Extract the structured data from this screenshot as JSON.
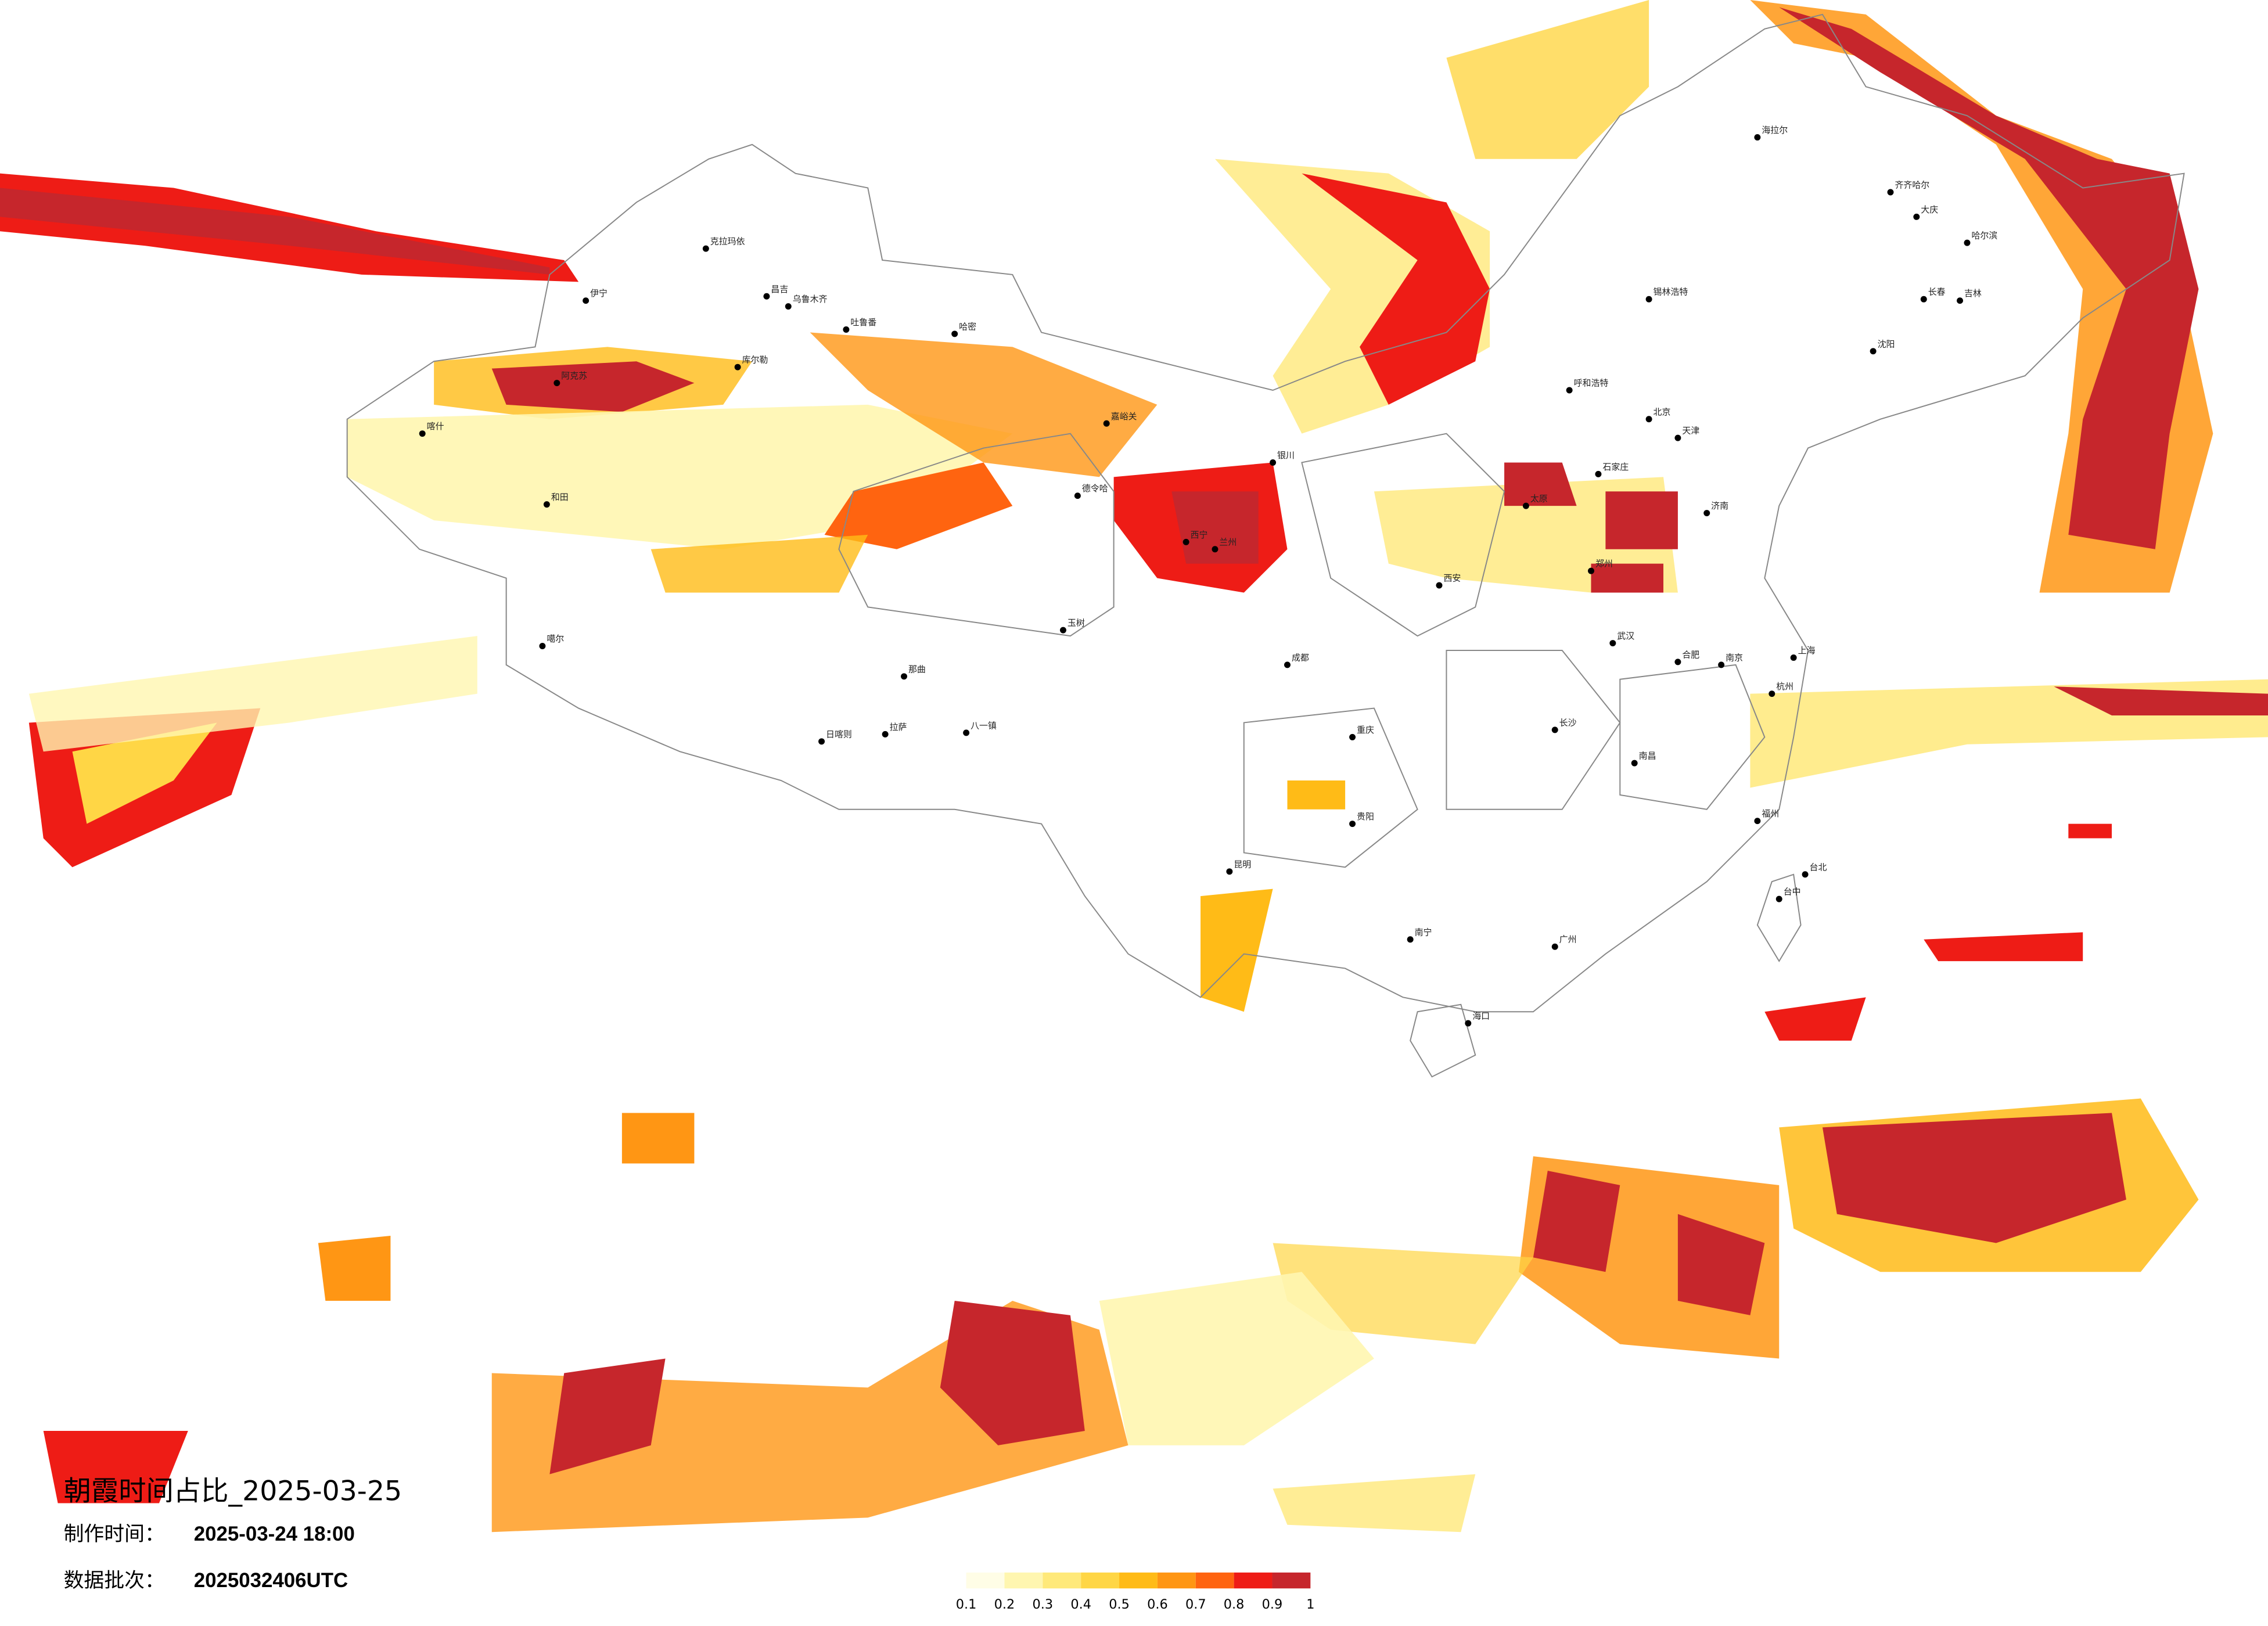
{
  "title": "朝霞时间占比_2025-03-25",
  "production_time": {
    "label": "制作时间：",
    "value": "2025-03-24 18:00"
  },
  "data_batch": {
    "label": "数据批次：",
    "value": "2025032406UTC"
  },
  "legend": {
    "ticks": [
      0.1,
      0.2,
      0.3,
      0.4,
      0.5,
      0.6,
      0.7,
      0.8,
      0.9,
      1
    ],
    "colors": [
      "#fffde6",
      "#fff6b0",
      "#ffe97a",
      "#ffd645",
      "#ffbb17",
      "#ff9614",
      "#ff6410",
      "#ee1c16",
      "#c6262c"
    ]
  },
  "cities": [
    "克拉玛依",
    "伊宁",
    "昌吉",
    "乌鲁木齐",
    "吐鲁番",
    "哈密",
    "库尔勒",
    "阿克苏",
    "喀什",
    "和田",
    "噶尔",
    "日喀则",
    "拉萨",
    "八一镇",
    "那曲",
    "玉树",
    "嘉峪关",
    "德令哈",
    "西宁",
    "兰州",
    "银川",
    "海拉尔",
    "齐齐哈尔",
    "大庆",
    "哈尔滨",
    "长春",
    "吉林",
    "沈阳",
    "锡林浩特",
    "呼和浩特",
    "北京",
    "天津",
    "石家庄",
    "太原",
    "济南",
    "郑州",
    "西安",
    "武汉",
    "长沙",
    "成都",
    "重庆",
    "贵阳",
    "昆明",
    "南宁",
    "广州",
    "海口",
    "南昌",
    "福州",
    "杭州",
    "上海",
    "南京",
    "合肥",
    "台北",
    "台中"
  ]
}
